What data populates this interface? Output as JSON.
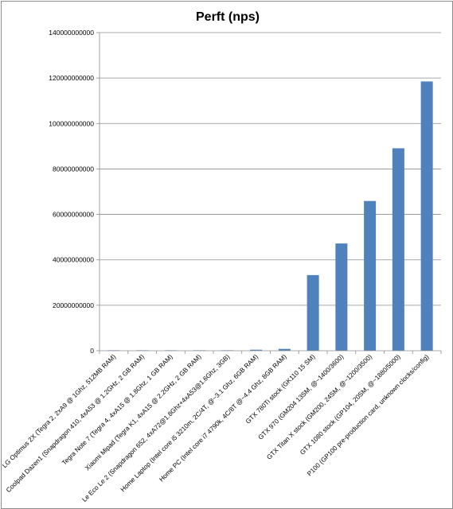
{
  "chart_data": {
    "type": "bar",
    "title": "Perft (nps)",
    "xlabel": "",
    "ylabel": "",
    "ylim": [
      0,
      140000000000
    ],
    "yticks": [
      0,
      20000000000,
      40000000000,
      60000000000,
      80000000000,
      100000000000,
      120000000000,
      140000000000
    ],
    "ytick_labels": [
      "0",
      "20000000000",
      "40000000000",
      "60000000000",
      "80000000000",
      "100000000000",
      "120000000000",
      "140000000000"
    ],
    "grid": true,
    "legend": "none",
    "bar_color": "#4f81bd",
    "categories": [
      "LG Optimus 2X (Tegra 2, 2xA9 @ 1Ghz, 512MB RAM)",
      "Coolpad Dazen1 (Snapdragon 410, 4xA53 @ 1.2GHz, 2 GB RAM)",
      "Tegra Note 7 (Tegra 4, 4xA15 @ 1.8Ghz, 1 GB RAM)",
      "Xiaomi Mipad (Tegra K1, 4xA15 @ 2.2GHz, 2 GB RAM)",
      "Le Eco Le 2 (Snapdragon 652, 4xA72@1.8Ghz+4xA53@1.6Ghz, 3GB)",
      "Home Laptop (Intel core i5 3210m, 2C/4T, @~3.1 Ghz, 6GB RAM)",
      "Home PC (Intel core i7 4790k, 4C/8T @~4.4 Ghz, 8GB RAM)",
      "GTX 780Ti stock (GK110 15 SM)",
      "GTX 970 (GM204 13SM, @~1400/3600)",
      "GTX Titan X stock (GM200, 24SM, @~1200/3500)",
      "GTX 1080 stock (GP104, 20SM, @~1880/5000)",
      "P100 (GP100 pre-production card, unknown clocks/config)"
    ],
    "values": [
      15000000,
      40000000,
      70000000,
      110000000,
      130000000,
      450000000,
      800000000,
      33300000000,
      47200000000,
      65900000000,
      89100000000,
      118500000000
    ]
  }
}
